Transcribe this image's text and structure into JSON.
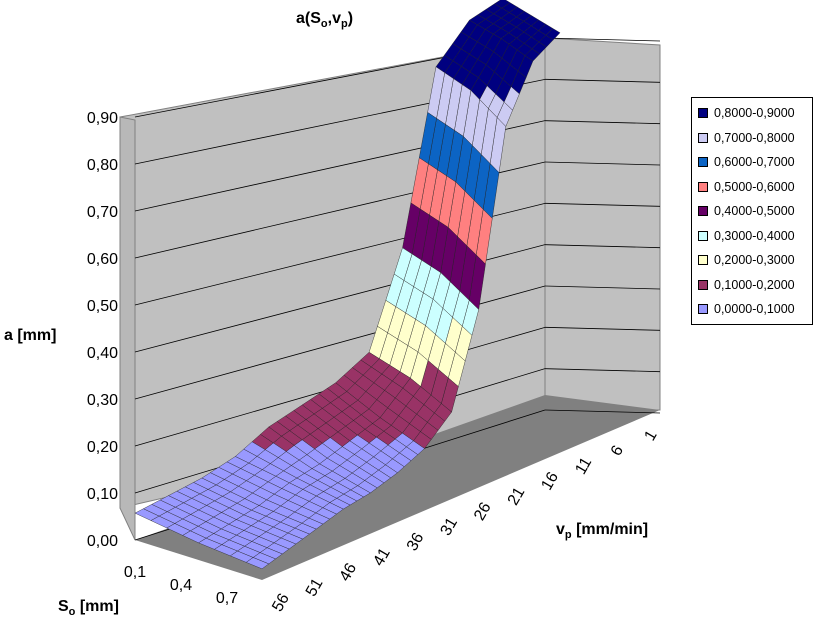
{
  "chart_data": {
    "type": "surface",
    "title_main": "a(S",
    "title_sub1": "o",
    "title_mid": ",v",
    "title_sub2": "p",
    "title_end": ")",
    "zlabel": "a [mm]",
    "xlabel_main": "v",
    "xlabel_sub": "p",
    "xlabel_unit": " [mm/min]",
    "ylabel_main": "S",
    "ylabel_sub": "o",
    "ylabel_unit": " [mm]",
    "z_ticks": [
      "0,00",
      "0,10",
      "0,20",
      "0,30",
      "0,40",
      "0,50",
      "0,60",
      "0,70",
      "0,80",
      "0,90"
    ],
    "zlim": [
      0,
      0.9
    ],
    "vp_ticks": [
      "1",
      "6",
      "11",
      "16",
      "21",
      "26",
      "31",
      "36",
      "41",
      "46",
      "51",
      "56"
    ],
    "so_ticks": [
      "0,1",
      "0,4",
      "0,7"
    ],
    "grid": true,
    "legend_position": "right",
    "legend": [
      {
        "label": "0,8000-0,9000",
        "color": "#000080"
      },
      {
        "label": "0,7000-0,8000",
        "color": "#cccbf3"
      },
      {
        "label": "0,6000-0,7000",
        "color": "#0c64c4"
      },
      {
        "label": "0,5000-0,6000",
        "color": "#ff8080"
      },
      {
        "label": "0,4000-0,5000",
        "color": "#660066"
      },
      {
        "label": "0,3000-0,4000",
        "color": "#ccffff"
      },
      {
        "label": "0,2000-0,3000",
        "color": "#ffffcc"
      },
      {
        "label": "0,1000-0,2000",
        "color": "#993366"
      },
      {
        "label": "0,0000-0,1000",
        "color": "#9999ff"
      }
    ],
    "series": [
      {
        "so": "0,1",
        "vp": [
          1,
          6,
          11,
          16,
          21,
          26,
          31,
          36,
          41,
          46,
          51,
          56
        ],
        "a": [
          0.88,
          0.86,
          0.75,
          0.35,
          0.14,
          0.09,
          0.07,
          0.06,
          0.06,
          0.05,
          0.04,
          0.03
        ]
      },
      {
        "so": "0,4",
        "vp": [
          1,
          6,
          11,
          16,
          21,
          26,
          31,
          36,
          41,
          46,
          51,
          56
        ],
        "a": [
          0.89,
          0.88,
          0.8,
          0.4,
          0.18,
          0.12,
          0.1,
          0.08,
          0.07,
          0.05,
          0.04,
          0.03
        ]
      },
      {
        "so": "0,7",
        "vp": [
          1,
          6,
          11,
          16,
          21,
          26,
          31,
          36,
          41,
          46,
          51,
          56
        ],
        "a": [
          0.9,
          0.89,
          0.82,
          0.42,
          0.2,
          0.16,
          0.14,
          0.12,
          0.08,
          0.06,
          0.05,
          0.04
        ]
      }
    ]
  }
}
